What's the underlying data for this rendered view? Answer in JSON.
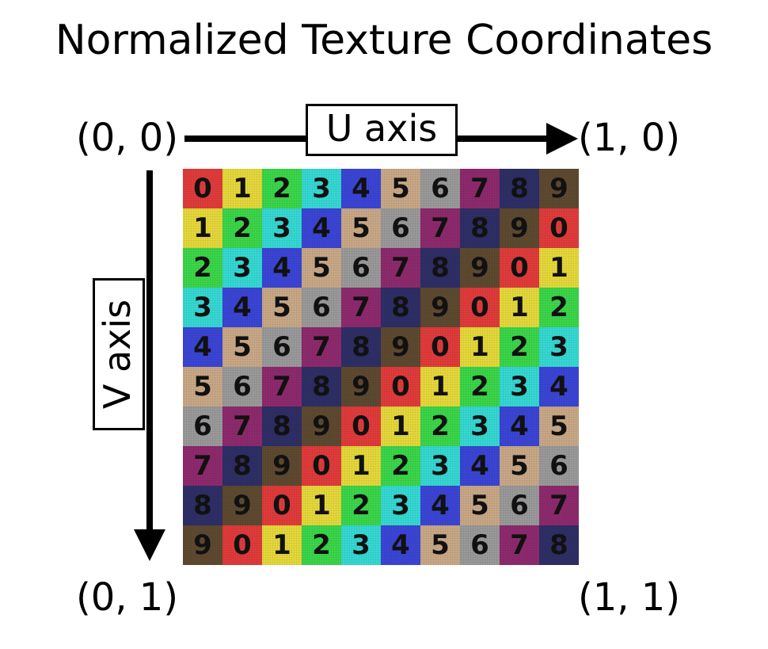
{
  "title": "Normalized Texture Coordinates",
  "corners": {
    "top_left": "(0, 0)",
    "top_right": "(1, 0)",
    "bottom_left": "(0, 1)",
    "bottom_right": "(1, 1)"
  },
  "axes": {
    "u_label": "U axis",
    "v_label": "V axis"
  },
  "texture": {
    "rows": [
      [
        "0",
        "1",
        "2",
        "3",
        "4",
        "5",
        "6",
        "7",
        "8",
        "9"
      ],
      [
        "1",
        "2",
        "3",
        "4",
        "5",
        "6",
        "7",
        "8",
        "9",
        "0"
      ],
      [
        "2",
        "3",
        "4",
        "5",
        "6",
        "7",
        "8",
        "9",
        "0",
        "1"
      ],
      [
        "3",
        "4",
        "5",
        "6",
        "7",
        "8",
        "9",
        "0",
        "1",
        "2"
      ],
      [
        "4",
        "5",
        "6",
        "7",
        "8",
        "9",
        "0",
        "1",
        "2",
        "3"
      ],
      [
        "5",
        "6",
        "7",
        "8",
        "9",
        "0",
        "1",
        "2",
        "3",
        "4"
      ],
      [
        "6",
        "7",
        "8",
        "9",
        "0",
        "1",
        "2",
        "3",
        "4",
        "5"
      ],
      [
        "7",
        "8",
        "9",
        "0",
        "1",
        "2",
        "3",
        "4",
        "5",
        "6"
      ],
      [
        "8",
        "9",
        "0",
        "1",
        "2",
        "3",
        "4",
        "5",
        "6",
        "7"
      ],
      [
        "9",
        "0",
        "1",
        "2",
        "3",
        "4",
        "5",
        "6",
        "7",
        "8"
      ]
    ],
    "digit_colors": {
      "0": "#e23b3b",
      "1": "#e6d93b",
      "2": "#3bd74a",
      "3": "#36d9d4",
      "4": "#3b45d6",
      "5": "#c9a887",
      "6": "#9a9a9a",
      "7": "#8e2a6e",
      "8": "#2e2f66",
      "9": "#5e4a30"
    }
  }
}
